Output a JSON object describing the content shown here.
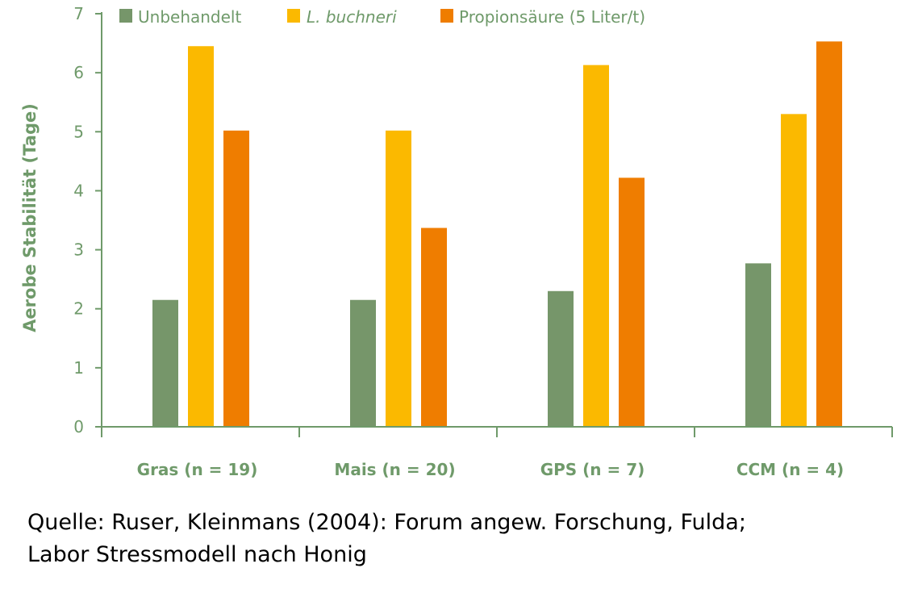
{
  "colors": {
    "axis": "#6f9a6a",
    "text": "#6f9a6a",
    "series": [
      "#76966a",
      "#fbb900",
      "#ef7d00"
    ]
  },
  "chart_data": {
    "type": "bar",
    "title": "",
    "xlabel": "",
    "ylabel": "Aerobe Stabilität (Tage)",
    "ylim": [
      0,
      7
    ],
    "yticks": [
      "0",
      "1",
      "2",
      "3",
      "4",
      "5",
      "6",
      "7"
    ],
    "grid": false,
    "legend_position": "top",
    "categories": [
      "Gras (n = 19)",
      "Mais (n = 20)",
      "GPS (n = 7)",
      "CCM (n = 4)"
    ],
    "series": [
      {
        "name": "Unbehandelt",
        "values": [
          2.15,
          2.15,
          2.3,
          2.77
        ]
      },
      {
        "name": "L. buchneri",
        "values": [
          6.45,
          5.02,
          6.13,
          5.3
        ]
      },
      {
        "name": "Propionsäure (5 Liter/t)",
        "values": [
          5.02,
          3.37,
          4.22,
          6.53
        ]
      }
    ]
  },
  "source": {
    "line1": "Quelle: Ruser, Kleinmans (2004): Forum angew. Forschung, Fulda;",
    "line2": "Labor Stressmodell nach Honig"
  }
}
